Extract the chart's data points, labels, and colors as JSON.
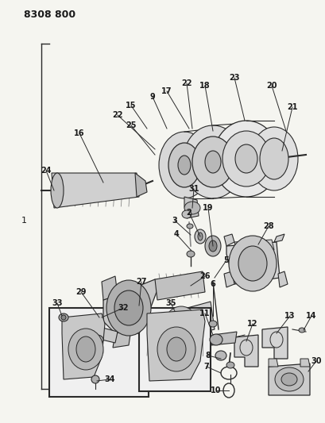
{
  "title": "8308 800",
  "bg_color": "#f5f5f0",
  "fig_width": 4.1,
  "fig_height": 5.33,
  "dpi": 100,
  "lc": "#2a2a2a",
  "tc": "#1a1a1a",
  "fc_light": "#e0e0e0",
  "fc_mid": "#cccccc",
  "fc_dark": "#aaaaaa",
  "fc_white": "#f0f0f0"
}
